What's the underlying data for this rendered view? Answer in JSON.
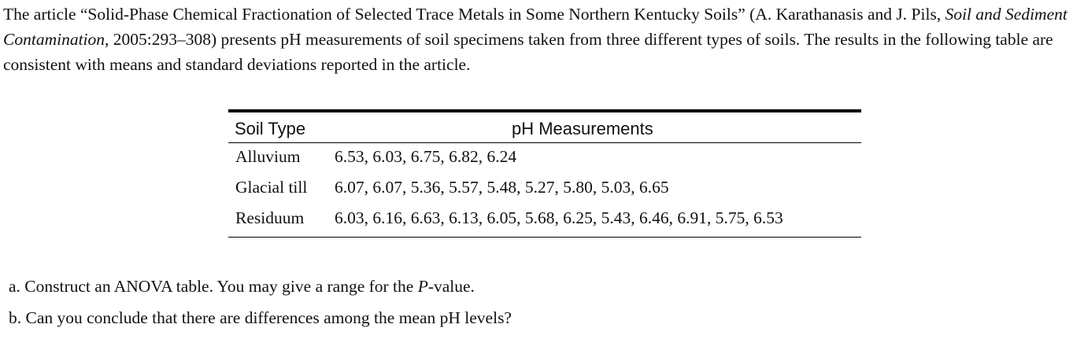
{
  "intro": {
    "part1": "The article “Solid-Phase Chemical Fractionation of Selected Trace Metals in Some Northern Kentucky Soils” (A. Karathanasis and J. Pils, ",
    "journal": "Soil and Sediment Contamination",
    "part2": ", 2005:293–308) presents pH measurements of soil specimens taken from three different types of soils. The results in the following table are consistent with means and standard deviations reported in the article."
  },
  "table": {
    "headers": [
      "Soil Type",
      "pH Measurements"
    ],
    "rows": [
      {
        "soil": "Alluvium",
        "values": "6.53, 6.03, 6.75, 6.82, 6.24"
      },
      {
        "soil": "Glacial till",
        "values": "6.07, 6.07, 5.36, 5.57, 5.48, 5.27, 5.80, 5.03, 6.65"
      },
      {
        "soil": "Residuum",
        "values": "6.03, 6.16, 6.63, 6.13, 6.05, 5.68, 6.25, 5.43, 6.46, 6.91, 5.75, 6.53"
      }
    ]
  },
  "questions": {
    "a_before": "a. Construct an ANOVA table. You may give a range for the ",
    "a_italic": "P",
    "a_after": "-value.",
    "b": "b. Can you conclude that there are differences among the mean pH levels?"
  }
}
